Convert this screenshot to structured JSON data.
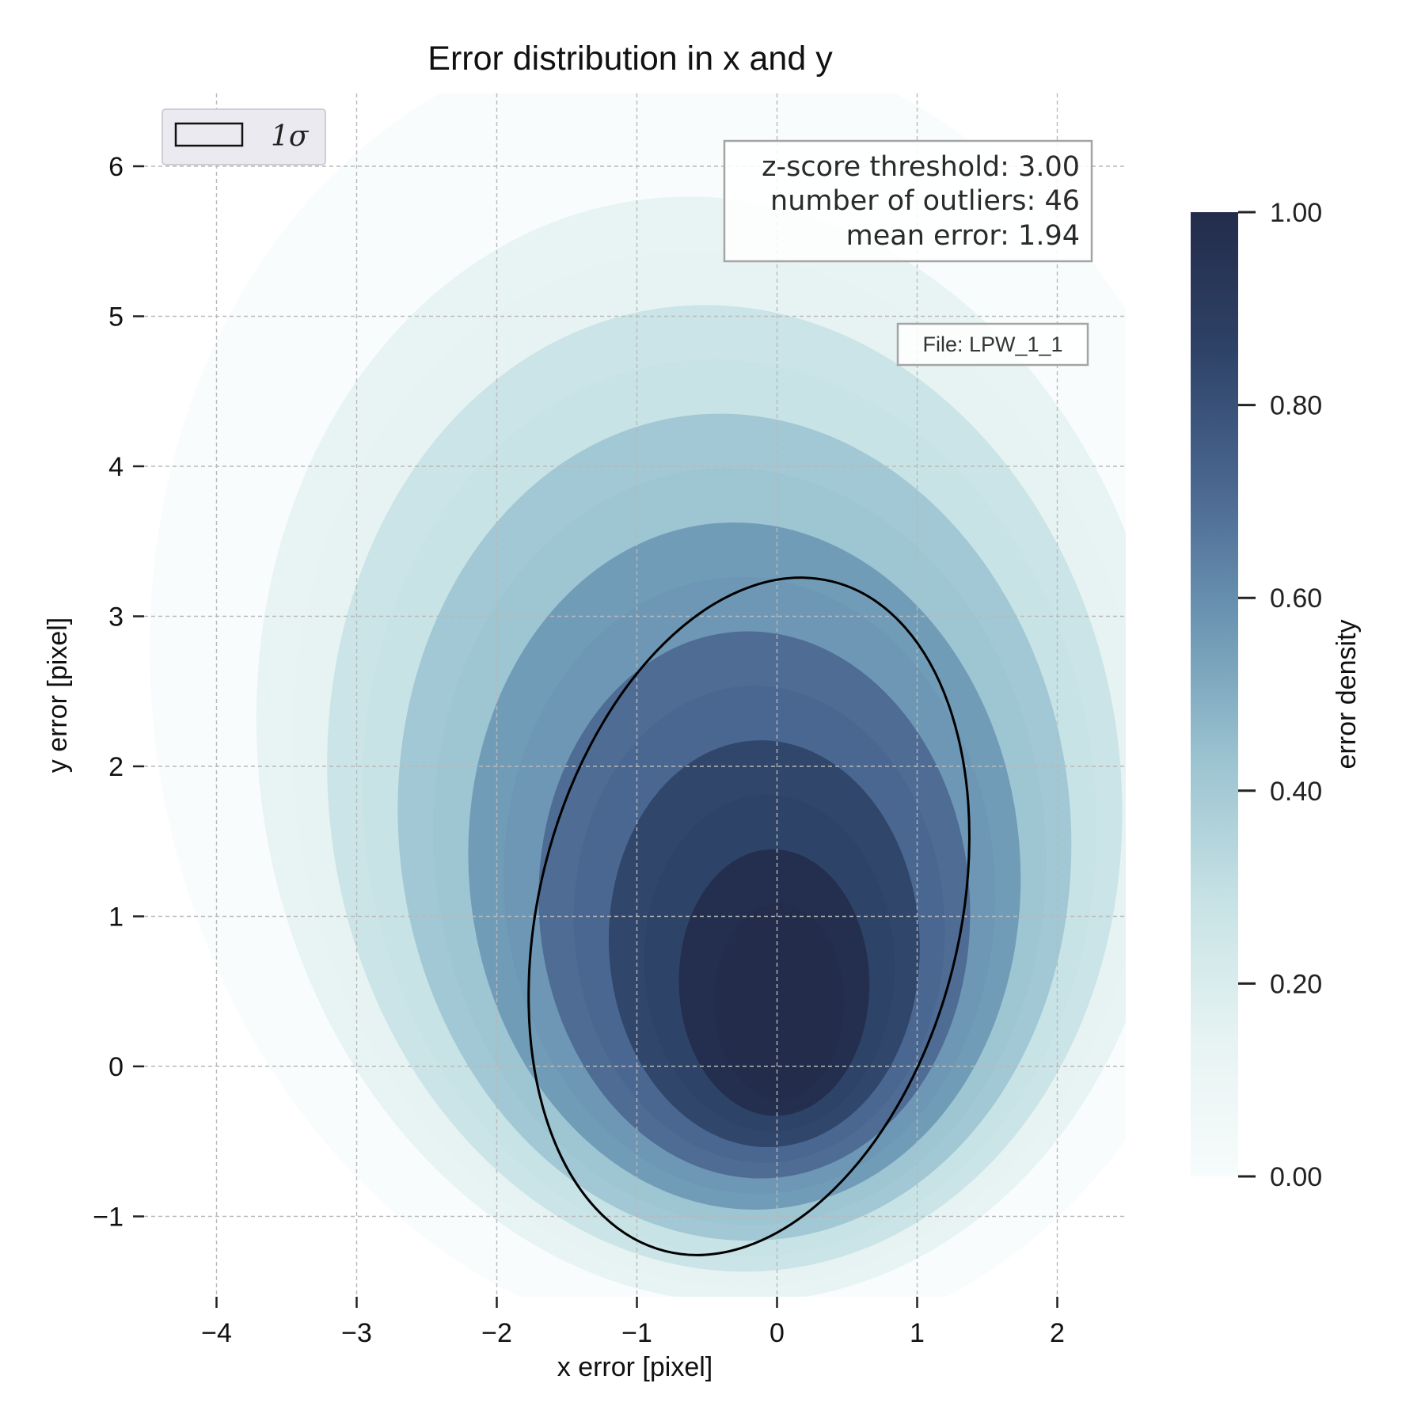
{
  "chart_data": {
    "type": "heatmap",
    "title": "Error distribution in x and y",
    "xlabel": "x error [pixel]",
    "ylabel": "y error [pixel]",
    "xlim": [
      -4.5,
      2.5
    ],
    "ylim": [
      -1.5,
      6.5
    ],
    "x_ticks": [
      {
        "value": -4,
        "label": "−4"
      },
      {
        "value": -3,
        "label": "−3"
      },
      {
        "value": -2,
        "label": "−2"
      },
      {
        "value": -1,
        "label": "−1"
      },
      {
        "value": 0,
        "label": "0"
      },
      {
        "value": 1,
        "label": "1"
      },
      {
        "value": 2,
        "label": "2"
      }
    ],
    "y_ticks": [
      {
        "value": -1,
        "label": "−1"
      },
      {
        "value": 0,
        "label": "0"
      },
      {
        "value": 1,
        "label": "1"
      },
      {
        "value": 2,
        "label": "2"
      },
      {
        "value": 3,
        "label": "3"
      },
      {
        "value": 4,
        "label": "4"
      },
      {
        "value": 5,
        "label": "5"
      },
      {
        "value": 6,
        "label": "6"
      }
    ],
    "grid": true,
    "density_peak": {
      "x": 0.05,
      "y": 0.3
    },
    "sigma_ellipse": {
      "center": [
        -0.2,
        1.0
      ],
      "half_axes": [
        1.5,
        2.3
      ],
      "tilt_deg": 14,
      "label": "1σ"
    },
    "legend": {
      "placement": "top-left",
      "entries": [
        "1σ"
      ]
    },
    "annotations": {
      "stats": [
        "z-score threshold: 3.00",
        "number of outliers: 46",
        "mean error: 1.94"
      ],
      "file": "File: LPW_1_1"
    },
    "colorbar": {
      "label": "error density",
      "range": [
        0,
        1
      ],
      "ticks": [
        {
          "value": 0.0,
          "label": "0.00"
        },
        {
          "value": 0.2,
          "label": "0.20"
        },
        {
          "value": 0.4,
          "label": "0.40"
        },
        {
          "value": 0.6,
          "label": "0.60"
        },
        {
          "value": 0.8,
          "label": "0.80"
        },
        {
          "value": 1.0,
          "label": "1.00"
        }
      ],
      "colors": [
        "#f7fcfc",
        "#e6f3f2",
        "#c7e2e5",
        "#9cc4d1",
        "#6d97b4",
        "#4a6790",
        "#2e4267",
        "#232c4b"
      ]
    }
  }
}
